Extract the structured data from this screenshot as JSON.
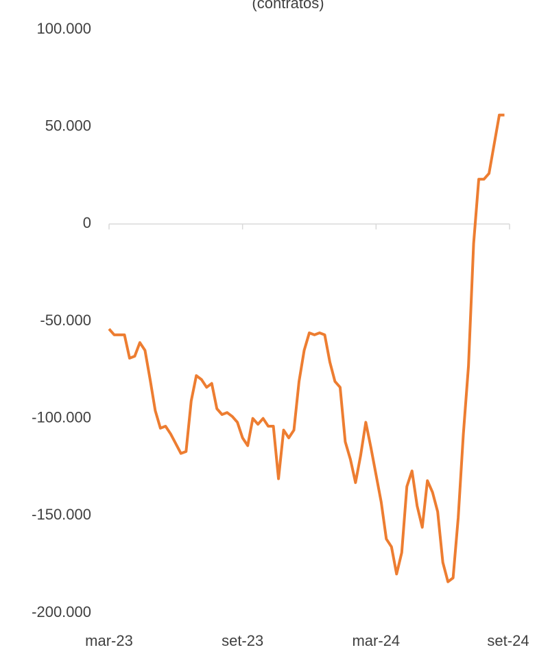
{
  "chart_data": {
    "type": "line",
    "title": "(contratos)",
    "categories": [
      "mar-23",
      null,
      null,
      null,
      null,
      null,
      null,
      null,
      null,
      null,
      null,
      null,
      null,
      null,
      null,
      null,
      null,
      null,
      null,
      null,
      null,
      null,
      null,
      null,
      null,
      null,
      "set-23",
      null,
      null,
      null,
      null,
      null,
      null,
      null,
      null,
      null,
      null,
      null,
      null,
      null,
      null,
      null,
      null,
      null,
      null,
      null,
      null,
      null,
      null,
      null,
      null,
      null,
      "mar-24",
      null,
      null,
      null,
      null,
      null,
      null,
      null,
      null,
      null,
      null,
      null,
      null,
      null,
      null,
      null,
      null,
      null,
      null,
      null,
      null,
      null,
      null,
      null,
      null,
      null,
      "set-24"
    ],
    "series": [
      {
        "name": "contratos",
        "color": "#ED7D31",
        "values": [
          -54000,
          -57000,
          -57000,
          -57000,
          -69000,
          -68000,
          -61000,
          -65000,
          -80000,
          -96000,
          -105000,
          -104000,
          -108000,
          -113000,
          -118000,
          -117000,
          -91000,
          -78000,
          -80000,
          -84000,
          -82000,
          -95000,
          -98000,
          -97000,
          -99000,
          -102000,
          -110000,
          -114000,
          -100000,
          -103000,
          -100000,
          -104000,
          -104000,
          -131000,
          -106000,
          -110000,
          -106000,
          -81000,
          -65000,
          -56000,
          -57000,
          -56000,
          -57000,
          -71000,
          -81000,
          -84000,
          -112000,
          -121000,
          -133000,
          -119000,
          -102000,
          -115000,
          -129000,
          -143000,
          -162000,
          -166000,
          -180000,
          -169000,
          -135000,
          -127000,
          -145000,
          -156000,
          -132000,
          -138000,
          -148000,
          -174000,
          -184000,
          -182000,
          -151000,
          -108000,
          -73000,
          -10000,
          23000,
          23000,
          26000,
          41000,
          56000,
          56000,
          null
        ]
      }
    ],
    "ylim": [
      -200000,
      100000
    ],
    "yticks": [
      {
        "value": -200000,
        "label": "-200.000"
      },
      {
        "value": -150000,
        "label": "-150.000"
      },
      {
        "value": -100000,
        "label": "-100.000"
      },
      {
        "value": -50000,
        "label": "-50.000"
      },
      0,
      {
        "value": 50000,
        "label": "50.000"
      },
      {
        "value": 100000,
        "label": "100.000"
      }
    ],
    "grid": false
  }
}
